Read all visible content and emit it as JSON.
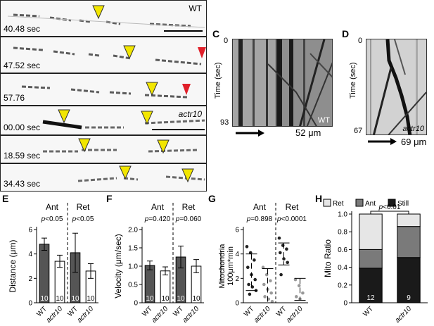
{
  "panels": {
    "A": "A",
    "B": "B",
    "C": "C",
    "D": "D",
    "E": "E",
    "F": "F",
    "G": "G",
    "H": "H"
  },
  "frames_a": {
    "genotype": "WT",
    "times": [
      "40.48 sec",
      "47.52 sec",
      "57.76"
    ]
  },
  "frames_b": {
    "genotype": "actr10",
    "times": [
      "00.00 sec",
      "18.59 sec",
      "34.43 sec"
    ]
  },
  "kymo_c": {
    "t0": "0",
    "tend": "93",
    "ylabel": "Time (sec)",
    "genotype": "WT",
    "scale": "52 μm"
  },
  "kymo_d": {
    "t0": "0",
    "tend": "67",
    "ylabel": "Time (sec)",
    "genotype": "actr10",
    "scale": "69 μm"
  },
  "colors": {
    "wt": "#555555",
    "actr10": "#ffffff",
    "arrow_yellow": "#f2e600",
    "arrow_red": "#e0202a",
    "ret": "#e6e6e6",
    "ant": "#7a7a7a",
    "still": "#1a1a1a"
  },
  "chart_data": [
    {
      "panel": "E",
      "type": "bar",
      "ylabel": "Distance (μm)",
      "ylim": [
        0,
        6
      ],
      "yticks": [
        "0",
        "2",
        "4",
        "6"
      ],
      "groups": [
        "Ant",
        "Ret"
      ],
      "categories": [
        "WT",
        "actr10",
        "WT",
        "actr10"
      ],
      "values": [
        4.8,
        3.4,
        4.1,
        2.6
      ],
      "errors": [
        0.5,
        0.5,
        1.6,
        0.6
      ],
      "n": [
        "10",
        "10",
        "10",
        "10"
      ],
      "pvalues": [
        "p<0.05",
        "p<0.05"
      ]
    },
    {
      "panel": "F",
      "type": "bar",
      "ylabel": "Velocity (μm/sec)",
      "ylim": [
        0,
        2.0
      ],
      "yticks": [
        "0",
        "0.5",
        "1.0",
        "1.5",
        "2.0"
      ],
      "groups": [
        "Ant",
        "Ret"
      ],
      "categories": [
        "WT",
        "actr10",
        "WT",
        "actr10"
      ],
      "values": [
        1.02,
        0.87,
        1.25,
        1.0
      ],
      "errors": [
        0.12,
        0.11,
        0.3,
        0.18
      ],
      "n": [
        "10",
        "10",
        "10",
        "10"
      ],
      "pvalues": [
        "p=0.420",
        "p=0.060"
      ]
    },
    {
      "panel": "G",
      "type": "scatter",
      "ylabel": "Mitochondria",
      "ylabel2": "100μm*min",
      "ylim": [
        0,
        6
      ],
      "yticks": [
        "0",
        "2",
        "4",
        "6"
      ],
      "groups": [
        "Ant",
        "Ret"
      ],
      "categories": [
        "WT",
        "actr10",
        "WT",
        "actr10"
      ],
      "points": [
        [
          4.6,
          4.1,
          3.5,
          2.9,
          2.3,
          1.9,
          1.5,
          1.3,
          1.0,
          0.7
        ],
        [
          2.9,
          2.3,
          1.8,
          1.5,
          1.1,
          0.8,
          0.5,
          0.3,
          0.1
        ],
        [
          5.3,
          4.7,
          4.4,
          4.1,
          3.6,
          3.3,
          2.3
        ],
        [
          1.9,
          1.4,
          0.8,
          0.5,
          0.3
        ]
      ],
      "center": [
        2.5,
        1.3,
        4.0,
        1.1
      ],
      "sd": [
        1.5,
        1.5,
        0.9,
        0.9
      ],
      "pvalues": [
        "p=0.898",
        "p<0.0001"
      ]
    },
    {
      "panel": "H",
      "type": "bar",
      "ylabel": "Mito Ratio",
      "ylim": [
        0,
        1.0
      ],
      "yticks": [
        "0",
        "0.2",
        "0.4",
        "0.6",
        "0.8",
        "1.0"
      ],
      "categories": [
        "WT",
        "actr10"
      ],
      "legend": [
        "Ret",
        "Ant",
        "Still"
      ],
      "series": [
        {
          "name": "Still",
          "values": [
            0.39,
            0.51
          ]
        },
        {
          "name": "Ant",
          "values": [
            0.21,
            0.35
          ]
        },
        {
          "name": "Ret",
          "values": [
            0.4,
            0.14
          ]
        }
      ],
      "n": [
        "12",
        "9"
      ],
      "pvalue": "p<0.01"
    }
  ]
}
